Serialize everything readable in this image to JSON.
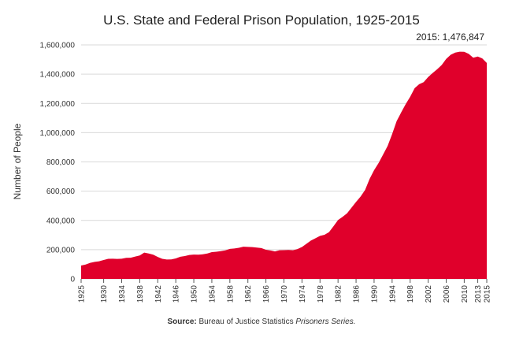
{
  "chart_data": {
    "type": "area",
    "title": "U.S. State and Federal Prison Population, 1925-2015",
    "ylabel": "Number of People",
    "xlabel": "",
    "ylim": [
      0,
      1600000
    ],
    "xlim": [
      1925,
      2015
    ],
    "yticks": [
      0,
      200000,
      400000,
      600000,
      800000,
      1000000,
      1200000,
      1400000,
      1600000
    ],
    "ytick_labels": [
      "0",
      "200,000",
      "400,000",
      "600,000",
      "800,000",
      "1,000,000",
      "1,200,000",
      "1,400,000",
      "1,600,000"
    ],
    "xticks": [
      "1925",
      "1930",
      "1934",
      "1938",
      "1942",
      "1946",
      "1950",
      "1954",
      "1958",
      "1962",
      "1966",
      "1970",
      "1974",
      "1978",
      "1982",
      "1986",
      "1990",
      "1994",
      "1998",
      "2002",
      "2006",
      "2010",
      "2013",
      "2015"
    ],
    "grid": true,
    "color": "#e0002b",
    "series": [
      {
        "name": "Prison Population",
        "x": [
          1925,
          1926,
          1927,
          1928,
          1929,
          1930,
          1931,
          1932,
          1933,
          1934,
          1935,
          1936,
          1937,
          1938,
          1939,
          1940,
          1941,
          1942,
          1943,
          1944,
          1945,
          1946,
          1947,
          1948,
          1949,
          1950,
          1951,
          1952,
          1953,
          1954,
          1955,
          1956,
          1957,
          1958,
          1959,
          1960,
          1961,
          1962,
          1963,
          1964,
          1965,
          1966,
          1967,
          1968,
          1969,
          1970,
          1971,
          1972,
          1973,
          1974,
          1975,
          1976,
          1977,
          1978,
          1979,
          1980,
          1981,
          1982,
          1983,
          1984,
          1985,
          1986,
          1987,
          1988,
          1989,
          1990,
          1991,
          1992,
          1993,
          1994,
          1995,
          1996,
          1997,
          1998,
          1999,
          2000,
          2001,
          2002,
          2003,
          2004,
          2005,
          2006,
          2007,
          2008,
          2009,
          2010,
          2011,
          2012,
          2013,
          2014,
          2015
        ],
        "values": [
          91669,
          97991,
          109983,
          116390,
          120496,
          129453,
          137082,
          137997,
          136810,
          138316,
          144180,
          145038,
          152741,
          160285,
          179818,
          173706,
          165439,
          150384,
          137220,
          132456,
          133649,
          140079,
          151304,
          155977,
          163749,
          166123,
          165680,
          168233,
          173579,
          182901,
          185780,
          189565,
          195414,
          205643,
          208105,
          212953,
          220149,
          218830,
          217283,
          214336,
          210895,
          199654,
          194896,
          187914,
          196007,
          196429,
          198061,
          196183,
          204211,
          218466,
          240593,
          262833,
          278141,
          294396,
          301470,
          319598,
          360029,
          402914,
          423898,
          448264,
          487593,
          526436,
          562814,
          607766,
          683367,
          743382,
          792535,
          850566,
          909381,
          990147,
          1078542,
          1137722,
          1194581,
          1245402,
          1304074,
          1331278,
          1345217,
          1380370,
          1408361,
          1433728,
          1462866,
          1504598,
          1532850,
          1547742,
          1553574,
          1552669,
          1538847,
          1512430,
          1520403,
          1507781,
          1476847
        ]
      }
    ],
    "annotation": {
      "x": 2015,
      "text": "2015: 1,476,847"
    }
  },
  "source": {
    "label": "Source:",
    "text": " Bureau of Justice Statistics ",
    "italic": "Prisoners Series."
  }
}
